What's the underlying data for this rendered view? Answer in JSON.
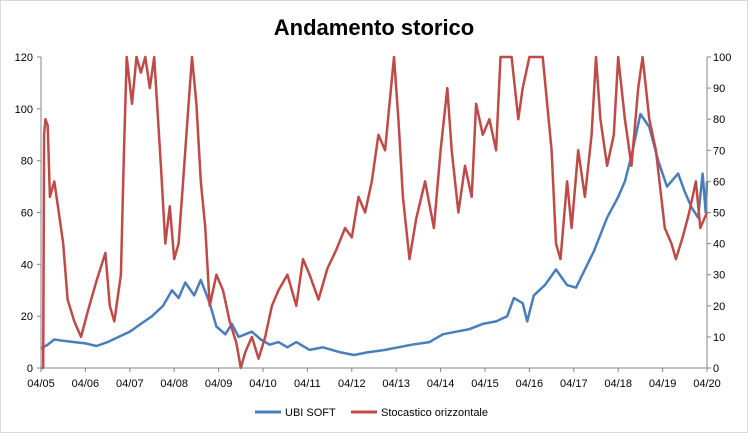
{
  "chart_data": {
    "type": "line",
    "title": "Andamento storico",
    "xlabel": "",
    "ylabel": "",
    "x_tick_labels": [
      "04/05",
      "04/06",
      "04/07",
      "04/08",
      "04/09",
      "04/10",
      "04/11",
      "04/12",
      "04/13",
      "04/14",
      "04/15",
      "04/16",
      "04/17",
      "04/18",
      "04/19",
      "04/20"
    ],
    "x_range": [
      2005.25,
      2020.25
    ],
    "y_left": {
      "range": [
        0,
        120
      ],
      "ticks": [
        0,
        20,
        40,
        60,
        80,
        100,
        120
      ]
    },
    "y_right": {
      "range": [
        0,
        100
      ],
      "ticks": [
        0,
        10,
        20,
        30,
        40,
        50,
        60,
        70,
        80,
        90,
        100
      ]
    },
    "gridlines": false,
    "legend_position": "bottom",
    "series": [
      {
        "name": "UBI SOFT",
        "axis": "left",
        "color": "#4a7ebb",
        "points": [
          [
            2005.25,
            7.5
          ],
          [
            2005.4,
            9
          ],
          [
            2005.55,
            11
          ],
          [
            2005.75,
            10.5
          ],
          [
            2006.0,
            10
          ],
          [
            2006.25,
            9.5
          ],
          [
            2006.5,
            8.5
          ],
          [
            2006.75,
            10
          ],
          [
            2007.0,
            12
          ],
          [
            2007.25,
            14
          ],
          [
            2007.5,
            17
          ],
          [
            2007.75,
            20
          ],
          [
            2008.0,
            24
          ],
          [
            2008.2,
            30
          ],
          [
            2008.35,
            27
          ],
          [
            2008.5,
            33
          ],
          [
            2008.7,
            28
          ],
          [
            2008.85,
            34
          ],
          [
            2009.05,
            25
          ],
          [
            2009.2,
            16
          ],
          [
            2009.4,
            13
          ],
          [
            2009.55,
            17
          ],
          [
            2009.7,
            12
          ],
          [
            2010.0,
            14
          ],
          [
            2010.2,
            11
          ],
          [
            2010.4,
            9
          ],
          [
            2010.6,
            10
          ],
          [
            2010.8,
            8
          ],
          [
            2011.0,
            10
          ],
          [
            2011.3,
            7
          ],
          [
            2011.6,
            8
          ],
          [
            2012.0,
            6
          ],
          [
            2012.3,
            5
          ],
          [
            2012.6,
            6
          ],
          [
            2013.0,
            7
          ],
          [
            2013.3,
            8
          ],
          [
            2013.6,
            9
          ],
          [
            2014.0,
            10
          ],
          [
            2014.3,
            13
          ],
          [
            2014.6,
            14
          ],
          [
            2014.9,
            15
          ],
          [
            2015.2,
            17
          ],
          [
            2015.5,
            18
          ],
          [
            2015.75,
            20
          ],
          [
            2015.9,
            27
          ],
          [
            2016.1,
            25
          ],
          [
            2016.2,
            18
          ],
          [
            2016.35,
            28
          ],
          [
            2016.6,
            32
          ],
          [
            2016.85,
            38
          ],
          [
            2017.1,
            32
          ],
          [
            2017.3,
            31
          ],
          [
            2017.5,
            38
          ],
          [
            2017.7,
            45
          ],
          [
            2018.0,
            58
          ],
          [
            2018.25,
            66
          ],
          [
            2018.4,
            72
          ],
          [
            2018.55,
            82
          ],
          [
            2018.75,
            98
          ],
          [
            2018.95,
            93
          ],
          [
            2019.15,
            80
          ],
          [
            2019.35,
            70
          ],
          [
            2019.6,
            75
          ],
          [
            2019.75,
            68
          ],
          [
            2019.9,
            62
          ],
          [
            2020.05,
            58
          ],
          [
            2020.15,
            75
          ],
          [
            2020.22,
            60
          ],
          [
            2020.25,
            72
          ]
        ]
      },
      {
        "name": "Stocastico orizzontale",
        "axis": "right",
        "color": "#be4b48",
        "points": [
          [
            2005.25,
            0
          ],
          [
            2005.3,
            0
          ],
          [
            2005.32,
            75
          ],
          [
            2005.35,
            80
          ],
          [
            2005.4,
            78
          ],
          [
            2005.45,
            55
          ],
          [
            2005.55,
            60
          ],
          [
            2005.65,
            50
          ],
          [
            2005.75,
            40
          ],
          [
            2005.85,
            22
          ],
          [
            2006.0,
            15
          ],
          [
            2006.15,
            10
          ],
          [
            2006.3,
            18
          ],
          [
            2006.5,
            28
          ],
          [
            2006.7,
            37
          ],
          [
            2006.8,
            20
          ],
          [
            2006.9,
            15
          ],
          [
            2007.05,
            30
          ],
          [
            2007.12,
            70
          ],
          [
            2007.18,
            100
          ],
          [
            2007.3,
            85
          ],
          [
            2007.4,
            100
          ],
          [
            2007.5,
            95
          ],
          [
            2007.6,
            100
          ],
          [
            2007.7,
            90
          ],
          [
            2007.8,
            100
          ],
          [
            2007.95,
            65
          ],
          [
            2008.05,
            40
          ],
          [
            2008.15,
            52
          ],
          [
            2008.25,
            35
          ],
          [
            2008.35,
            40
          ],
          [
            2008.45,
            60
          ],
          [
            2008.55,
            80
          ],
          [
            2008.65,
            100
          ],
          [
            2008.75,
            85
          ],
          [
            2008.85,
            60
          ],
          [
            2008.95,
            45
          ],
          [
            2009.05,
            20
          ],
          [
            2009.2,
            30
          ],
          [
            2009.35,
            25
          ],
          [
            2009.5,
            15
          ],
          [
            2009.65,
            8
          ],
          [
            2009.75,
            0
          ],
          [
            2009.85,
            5
          ],
          [
            2010.0,
            10
          ],
          [
            2010.15,
            3
          ],
          [
            2010.3,
            10
          ],
          [
            2010.45,
            20
          ],
          [
            2010.6,
            25
          ],
          [
            2010.8,
            30
          ],
          [
            2011.0,
            20
          ],
          [
            2011.15,
            35
          ],
          [
            2011.3,
            30
          ],
          [
            2011.5,
            22
          ],
          [
            2011.7,
            32
          ],
          [
            2011.9,
            38
          ],
          [
            2012.1,
            45
          ],
          [
            2012.25,
            42
          ],
          [
            2012.4,
            55
          ],
          [
            2012.55,
            50
          ],
          [
            2012.7,
            60
          ],
          [
            2012.85,
            75
          ],
          [
            2013.0,
            70
          ],
          [
            2013.1,
            85
          ],
          [
            2013.2,
            100
          ],
          [
            2013.3,
            80
          ],
          [
            2013.4,
            55
          ],
          [
            2013.55,
            35
          ],
          [
            2013.7,
            48
          ],
          [
            2013.9,
            60
          ],
          [
            2014.1,
            45
          ],
          [
            2014.25,
            70
          ],
          [
            2014.4,
            90
          ],
          [
            2014.5,
            70
          ],
          [
            2014.65,
            50
          ],
          [
            2014.8,
            65
          ],
          [
            2014.95,
            55
          ],
          [
            2015.05,
            85
          ],
          [
            2015.2,
            75
          ],
          [
            2015.35,
            80
          ],
          [
            2015.5,
            70
          ],
          [
            2015.6,
            100
          ],
          [
            2015.85,
            100
          ],
          [
            2016.0,
            80
          ],
          [
            2016.1,
            90
          ],
          [
            2016.25,
            100
          ],
          [
            2016.55,
            100
          ],
          [
            2016.75,
            70
          ],
          [
            2016.85,
            40
          ],
          [
            2016.95,
            35
          ],
          [
            2017.1,
            60
          ],
          [
            2017.2,
            45
          ],
          [
            2017.35,
            70
          ],
          [
            2017.5,
            55
          ],
          [
            2017.65,
            75
          ],
          [
            2017.75,
            100
          ],
          [
            2017.85,
            80
          ],
          [
            2018.0,
            65
          ],
          [
            2018.15,
            75
          ],
          [
            2018.25,
            100
          ],
          [
            2018.4,
            80
          ],
          [
            2018.55,
            65
          ],
          [
            2018.7,
            90
          ],
          [
            2018.8,
            100
          ],
          [
            2018.95,
            80
          ],
          [
            2019.1,
            70
          ],
          [
            2019.3,
            45
          ],
          [
            2019.45,
            40
          ],
          [
            2019.55,
            35
          ],
          [
            2019.7,
            42
          ],
          [
            2019.85,
            50
          ],
          [
            2020.0,
            60
          ],
          [
            2020.1,
            45
          ],
          [
            2020.25,
            50
          ]
        ]
      }
    ]
  }
}
